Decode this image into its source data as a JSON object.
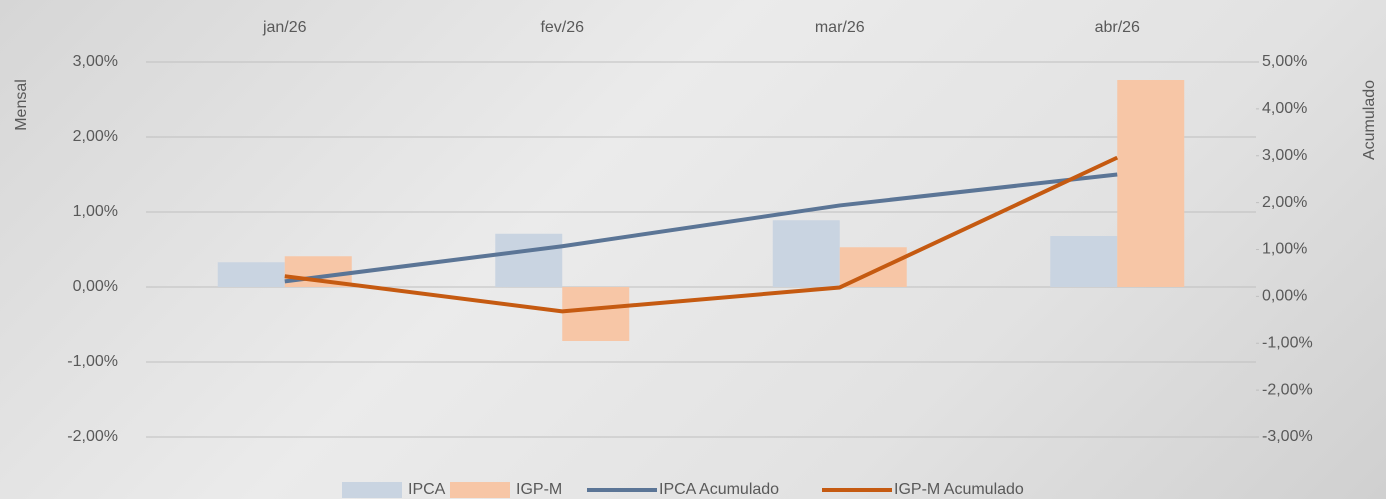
{
  "chart_data": {
    "type": "combo",
    "categories": [
      "jan/26",
      "fev/26",
      "mar/26",
      "abr/26"
    ],
    "y_label": "Mensal",
    "y2_label": "Acumulado",
    "ylim": [
      -2,
      3
    ],
    "yticks": [
      {
        "value": -2,
        "label": "-2,00%"
      },
      {
        "value": -1,
        "label": "-1,00%"
      },
      {
        "value": 0,
        "label": "0,00%"
      },
      {
        "value": 1,
        "label": "1,00%"
      },
      {
        "value": 2,
        "label": "2,00%"
      },
      {
        "value": 3,
        "label": "3,00%"
      }
    ],
    "y2lim": [
      -3,
      5
    ],
    "y2ticks": [
      {
        "value": -3,
        "label": "-3,00%"
      },
      {
        "value": -2,
        "label": "-2,00%"
      },
      {
        "value": -1,
        "label": "-1,00%"
      },
      {
        "value": 0,
        "label": "0,00%"
      },
      {
        "value": 1,
        "label": "1,00%"
      },
      {
        "value": 2,
        "label": "2,00%"
      },
      {
        "value": 3,
        "label": "3,00%"
      },
      {
        "value": 4,
        "label": "4,00%"
      },
      {
        "value": 5,
        "label": "5,00%"
      }
    ],
    "grid": true,
    "series": [
      {
        "name": "IPCA",
        "type": "bar",
        "color": "#c9d4e1",
        "values": [
          0.33,
          0.71,
          0.89,
          0.68
        ]
      },
      {
        "name": "IGP-M",
        "type": "bar",
        "color": "#f7c6a6",
        "values": [
          0.41,
          -0.72,
          0.53,
          2.76
        ]
      },
      {
        "name": "IPCA Acumulado",
        "type": "line",
        "axis": "y2",
        "color": "#5b7596",
        "values": [
          0.32,
          1.07,
          1.94,
          2.6
        ]
      },
      {
        "name": "IGP-M Acumulado",
        "type": "line",
        "axis": "y2",
        "color": "#c55a11",
        "values": [
          0.43,
          -0.32,
          0.19,
          2.96
        ]
      }
    ]
  }
}
